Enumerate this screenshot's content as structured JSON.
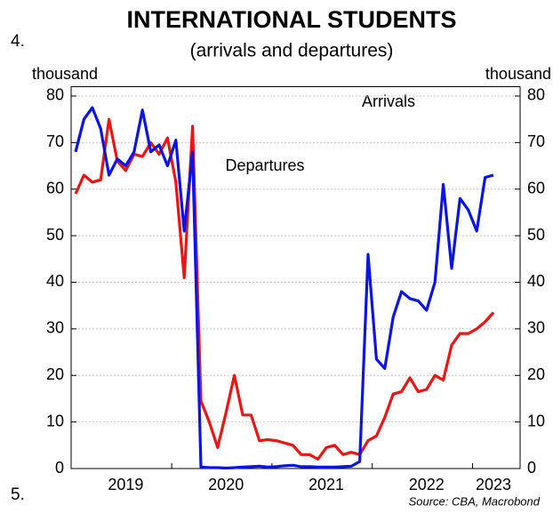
{
  "list_numbers": [
    "4.",
    "5."
  ],
  "chart_data": {
    "type": "line",
    "title": "INTERNATIONAL STUDENTS",
    "subtitle": "(arrivals and departures)",
    "y_label": "thousand",
    "y2_label": "thousand",
    "source": "Source: CBA, Macrobond",
    "categories": [
      null,
      null,
      null,
      null,
      null,
      null,
      "2019",
      null,
      null,
      null,
      null,
      null,
      null,
      null,
      null,
      null,
      null,
      null,
      "2020",
      null,
      null,
      null,
      null,
      null,
      null,
      null,
      null,
      null,
      null,
      null,
      "2021",
      null,
      null,
      null,
      null,
      null,
      null,
      null,
      null,
      null,
      null,
      null,
      "2022",
      null,
      null,
      null,
      null,
      null,
      null,
      null,
      "2023"
    ],
    "series": [
      {
        "name": "Arrivals",
        "color": "#0a14e6",
        "values": [
          68,
          75,
          77.5,
          73,
          63,
          66.5,
          65,
          68,
          77,
          68,
          69.5,
          65,
          70.5,
          51,
          68,
          0.3,
          0.2,
          0.2,
          0.1,
          0.2,
          0.3,
          0.4,
          0.5,
          0.3,
          0.4,
          0.6,
          0.7,
          0.4,
          0.4,
          0.3,
          0.3,
          0.3,
          0.4,
          0.5,
          1.5,
          46,
          23.5,
          21.5,
          32.5,
          38,
          36.5,
          36,
          34,
          40,
          61,
          43,
          58,
          55.5,
          51,
          62.5,
          63
        ]
      },
      {
        "name": "Departures",
        "color": "#ee1414",
        "values": [
          59,
          63,
          61.5,
          62,
          75,
          66,
          64,
          67.5,
          67,
          70,
          67.5,
          71,
          61.5,
          41,
          73.5,
          14.5,
          10,
          4.5,
          12,
          20,
          11.5,
          11.5,
          6,
          6.2,
          6,
          5.5,
          5,
          3,
          3,
          2,
          4.5,
          5,
          3,
          3.5,
          3,
          6,
          7,
          11,
          16,
          16.5,
          19.5,
          16.5,
          17,
          20,
          19,
          26.5,
          29,
          29,
          30,
          31.5,
          33.5
        ]
      }
    ],
    "ylim": [
      0,
      82
    ],
    "yticks": [
      0,
      10,
      20,
      30,
      40,
      50,
      60,
      70,
      80
    ],
    "grid": true
  }
}
